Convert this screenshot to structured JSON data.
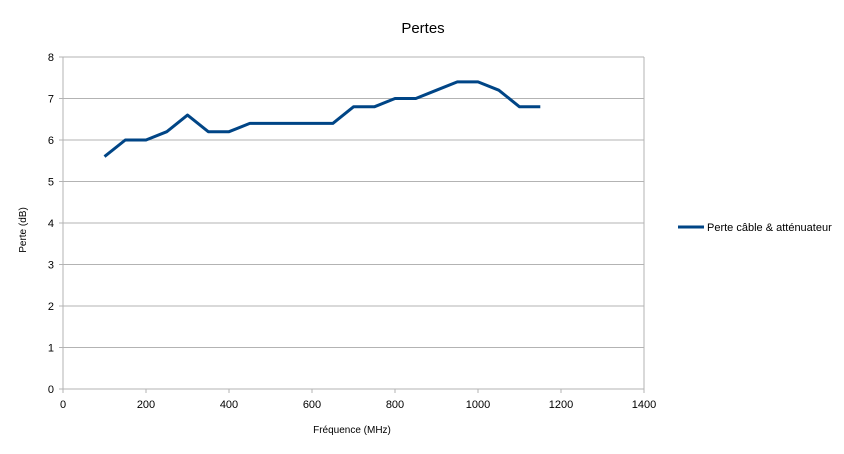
{
  "chart_data": {
    "type": "line",
    "title": "Pertes",
    "xlabel": "Fréquence (MHz)",
    "ylabel": "Perte (dB)",
    "xlim": [
      0,
      1400
    ],
    "ylim": [
      0,
      8
    ],
    "x_ticks": [
      0,
      200,
      400,
      600,
      800,
      1000,
      1200,
      1400
    ],
    "y_ticks": [
      0,
      1,
      2,
      3,
      4,
      5,
      6,
      7,
      8
    ],
    "grid": true,
    "legend_position": "right",
    "series": [
      {
        "name": "Perte câble & atténuateur",
        "color": "#004586",
        "x": [
          100,
          150,
          200,
          250,
          300,
          350,
          400,
          450,
          500,
          550,
          600,
          650,
          700,
          750,
          800,
          850,
          900,
          950,
          1000,
          1050,
          1100,
          1150
        ],
        "y": [
          5.6,
          6.0,
          6.0,
          6.2,
          6.6,
          6.2,
          6.2,
          6.4,
          6.4,
          6.4,
          6.4,
          6.4,
          6.8,
          6.8,
          7.0,
          7.0,
          7.2,
          7.4,
          7.4,
          7.2,
          6.8,
          6.8
        ]
      }
    ]
  }
}
